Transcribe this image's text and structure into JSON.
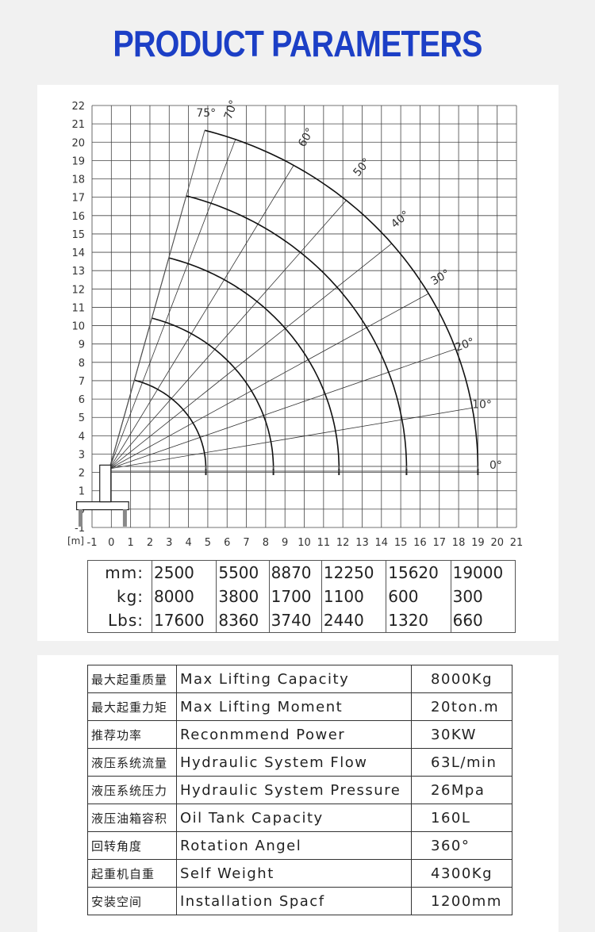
{
  "title": "PRODUCT PARAMETERS",
  "chart_data": {
    "type": "diagram",
    "x_unit_label": "[m]",
    "x_ticks": [
      -1,
      0,
      1,
      2,
      3,
      4,
      5,
      6,
      7,
      8,
      9,
      10,
      11,
      12,
      13,
      14,
      15,
      16,
      17,
      18,
      19,
      20,
      21
    ],
    "y_ticks": [
      -1,
      0,
      1,
      2,
      3,
      4,
      5,
      6,
      7,
      8,
      9,
      10,
      11,
      12,
      13,
      14,
      15,
      16,
      17,
      18,
      19,
      20,
      21,
      22
    ],
    "xlim": [
      -1,
      21
    ],
    "ylim": [
      -1,
      22
    ],
    "grid": true,
    "angle_labels": [
      "0°",
      "10°",
      "20°",
      "30°",
      "40°",
      "50°",
      "60°",
      "70°",
      "75°"
    ],
    "angles": [
      0,
      10,
      20,
      30,
      40,
      50,
      60,
      70,
      75
    ],
    "boom_pivot": [
      -0.1,
      2.2
    ],
    "boom_radii": [
      5.0,
      8.5,
      11.9,
      15.4,
      19.1
    ]
  },
  "load_table": {
    "labels": [
      "mm:",
      "kg:",
      "Lbs:"
    ],
    "columns": [
      [
        "2500",
        "8000",
        "17600"
      ],
      [
        "5500",
        "3800",
        "8360"
      ],
      [
        "8870",
        "1700",
        "3740"
      ],
      [
        "12250",
        "1100",
        "2440"
      ],
      [
        "15620",
        "600",
        "1320"
      ],
      [
        "19000",
        "300",
        "660"
      ]
    ]
  },
  "specs": [
    {
      "cn": "最大起重质量",
      "en": "Max Lifting Capacity",
      "value": "8000Kg"
    },
    {
      "cn": "最大起重力矩",
      "en": "Max Lifting Moment",
      "value": "20ton.m"
    },
    {
      "cn": "推荐功率",
      "en": "Reconmmend Power",
      "value": "30KW"
    },
    {
      "cn": "液压系统流量",
      "en": "Hydraulic System Flow",
      "value": "63L/min"
    },
    {
      "cn": "液压系统压力",
      "en": "Hydraulic System Pressure",
      "value": "26Mpa"
    },
    {
      "cn": "液压油箱容积",
      "en": "Oil Tank Capacity",
      "value": "160L"
    },
    {
      "cn": "回转角度",
      "en": "Rotation Angel",
      "value": "360°"
    },
    {
      "cn": "起重机自重",
      "en": "Self Weight",
      "value": "4300Kg"
    },
    {
      "cn": "安装空间",
      "en": "Installation Spacf",
      "value": "1200mm"
    }
  ]
}
